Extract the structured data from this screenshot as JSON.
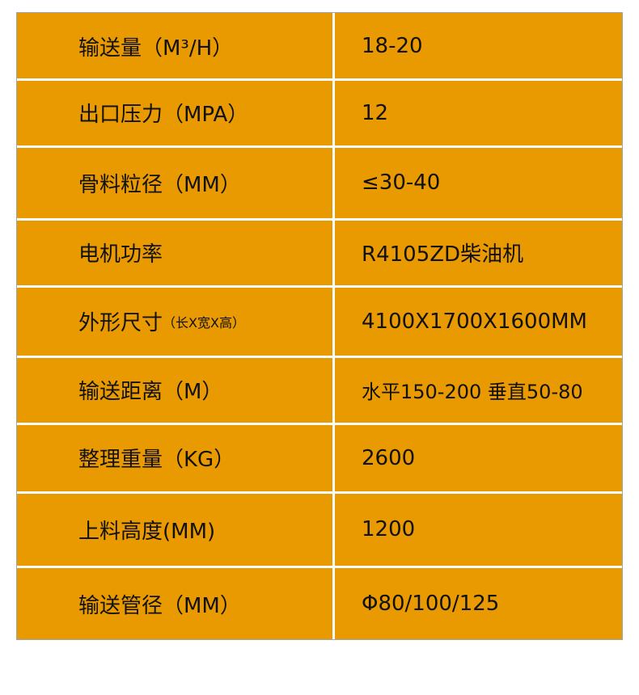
{
  "rows": [
    {
      "label": "输送量（M³/H）",
      "value": "18-20"
    },
    {
      "label": "出口压力（MPA）",
      "value": "12"
    },
    {
      "label": "骨料粒径（MM）",
      "value": "≤30-40"
    },
    {
      "label": "电机功率",
      "value": "R4105ZD柴油机"
    },
    {
      "label": "外形尺寸",
      "label_note": "（长X宽X高）",
      "value": "4100X1700X1600MM"
    },
    {
      "label": "输送距离（M）",
      "value": "水平150-200 垂直50-80"
    },
    {
      "label": "整理重量（KG）",
      "value": "2600"
    },
    {
      "label": "上料高度(MM)",
      "value": "1200"
    },
    {
      "label": "输送管径（MM）",
      "value": "Φ80/100/125"
    }
  ],
  "colors": {
    "cell_background": "#E99A00",
    "grid_line": "#FFFFFF"
  }
}
